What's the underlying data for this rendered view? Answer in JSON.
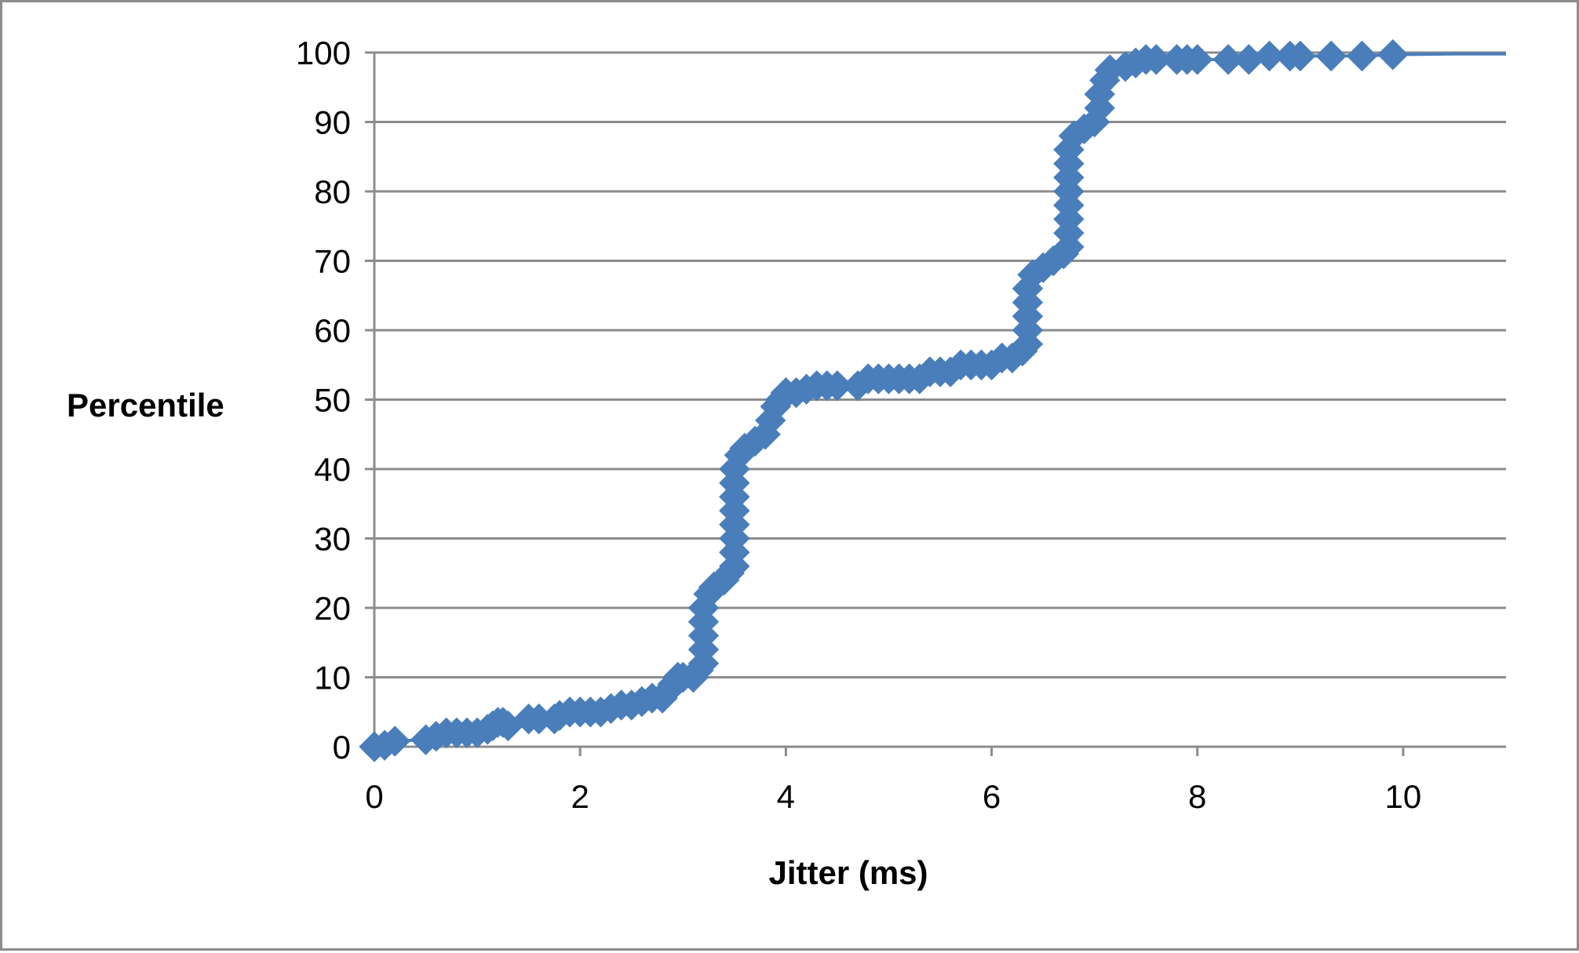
{
  "chart_data": {
    "type": "scatter",
    "title": "",
    "xlabel": "Jitter (ms)",
    "ylabel": "Percentile",
    "xlim": [
      0,
      11
    ],
    "ylim": [
      0,
      100
    ],
    "x_ticks": [
      0,
      2,
      4,
      6,
      8,
      10
    ],
    "y_ticks": [
      0,
      10,
      20,
      30,
      40,
      50,
      60,
      70,
      80,
      90,
      100
    ],
    "grid": {
      "horizontal": true,
      "vertical": false
    },
    "legend": "none",
    "colors": {
      "series": "#4a7ebb",
      "grid": "#8c8c8c",
      "border": "#8c8c8c"
    },
    "marker": "diamond",
    "series": [
      {
        "values": [
          [
            0.0,
            0.0
          ],
          [
            0.1,
            0.2
          ],
          [
            0.2,
            0.8
          ],
          [
            0.5,
            1.0
          ],
          [
            0.6,
            1.5
          ],
          [
            0.7,
            2.0
          ],
          [
            0.8,
            2.0
          ],
          [
            0.9,
            2.0
          ],
          [
            1.0,
            2.0
          ],
          [
            1.1,
            2.5
          ],
          [
            1.15,
            3.0
          ],
          [
            1.2,
            3.5
          ],
          [
            1.25,
            3.5
          ],
          [
            1.3,
            3.0
          ],
          [
            1.5,
            4.0
          ],
          [
            1.6,
            4.0
          ],
          [
            1.75,
            4.0
          ],
          [
            1.8,
            4.5
          ],
          [
            1.9,
            5.0
          ],
          [
            2.0,
            5.0
          ],
          [
            2.1,
            5.0
          ],
          [
            2.2,
            5.0
          ],
          [
            2.3,
            5.5
          ],
          [
            2.4,
            6.0
          ],
          [
            2.5,
            6.0
          ],
          [
            2.6,
            6.5
          ],
          [
            2.7,
            7.0
          ],
          [
            2.8,
            7.0
          ],
          [
            2.85,
            8.0
          ],
          [
            2.9,
            9.0
          ],
          [
            2.95,
            10.0
          ],
          [
            3.0,
            10.0
          ],
          [
            3.1,
            10.0
          ],
          [
            3.15,
            11.0
          ],
          [
            3.2,
            12.0
          ],
          [
            3.2,
            14.0
          ],
          [
            3.2,
            16.0
          ],
          [
            3.2,
            18.0
          ],
          [
            3.2,
            20.0
          ],
          [
            3.25,
            22.0
          ],
          [
            3.3,
            23.0
          ],
          [
            3.4,
            24.0
          ],
          [
            3.45,
            25.0
          ],
          [
            3.5,
            26.0
          ],
          [
            3.5,
            28.0
          ],
          [
            3.5,
            30.0
          ],
          [
            3.5,
            32.0
          ],
          [
            3.5,
            34.0
          ],
          [
            3.5,
            36.0
          ],
          [
            3.5,
            38.0
          ],
          [
            3.5,
            40.0
          ],
          [
            3.55,
            42.0
          ],
          [
            3.6,
            43.0
          ],
          [
            3.7,
            44.0
          ],
          [
            3.8,
            45.0
          ],
          [
            3.85,
            47.0
          ],
          [
            3.9,
            49.0
          ],
          [
            3.95,
            50.0
          ],
          [
            4.0,
            51.0
          ],
          [
            4.1,
            51.0
          ],
          [
            4.2,
            51.5
          ],
          [
            4.3,
            52.0
          ],
          [
            4.4,
            52.0
          ],
          [
            4.5,
            52.0
          ],
          [
            4.7,
            52.0
          ],
          [
            4.8,
            53.0
          ],
          [
            4.9,
            53.0
          ],
          [
            5.0,
            53.0
          ],
          [
            5.1,
            53.0
          ],
          [
            5.2,
            53.0
          ],
          [
            5.3,
            53.0
          ],
          [
            5.4,
            54.0
          ],
          [
            5.5,
            54.0
          ],
          [
            5.6,
            54.0
          ],
          [
            5.7,
            55.0
          ],
          [
            5.8,
            55.0
          ],
          [
            5.9,
            55.0
          ],
          [
            6.0,
            55.0
          ],
          [
            6.1,
            56.0
          ],
          [
            6.2,
            56.0
          ],
          [
            6.3,
            57.0
          ],
          [
            6.35,
            58.0
          ],
          [
            6.35,
            60.0
          ],
          [
            6.35,
            62.0
          ],
          [
            6.35,
            64.0
          ],
          [
            6.35,
            66.0
          ],
          [
            6.4,
            68.0
          ],
          [
            6.5,
            69.0
          ],
          [
            6.6,
            70.0
          ],
          [
            6.7,
            71.0
          ],
          [
            6.75,
            72.0
          ],
          [
            6.75,
            74.0
          ],
          [
            6.75,
            76.0
          ],
          [
            6.75,
            78.0
          ],
          [
            6.75,
            80.0
          ],
          [
            6.75,
            82.0
          ],
          [
            6.75,
            84.0
          ],
          [
            6.75,
            86.0
          ],
          [
            6.8,
            88.0
          ],
          [
            6.9,
            89.0
          ],
          [
            7.0,
            90.0
          ],
          [
            7.05,
            92.0
          ],
          [
            7.05,
            94.0
          ],
          [
            7.1,
            96.0
          ],
          [
            7.15,
            97.5
          ],
          [
            7.3,
            98.0
          ],
          [
            7.4,
            98.5
          ],
          [
            7.5,
            99.0
          ],
          [
            7.6,
            99.0
          ],
          [
            7.8,
            99.0
          ],
          [
            7.9,
            99.0
          ],
          [
            8.0,
            99.0
          ],
          [
            8.3,
            99.0
          ],
          [
            8.5,
            99.0
          ],
          [
            8.7,
            99.5
          ],
          [
            8.9,
            99.5
          ],
          [
            9.0,
            99.5
          ],
          [
            9.3,
            99.5
          ],
          [
            9.6,
            99.5
          ],
          [
            9.9,
            99.7
          ],
          [
            10.5,
            99.8
          ],
          [
            11.0,
            99.8
          ]
        ]
      }
    ]
  }
}
